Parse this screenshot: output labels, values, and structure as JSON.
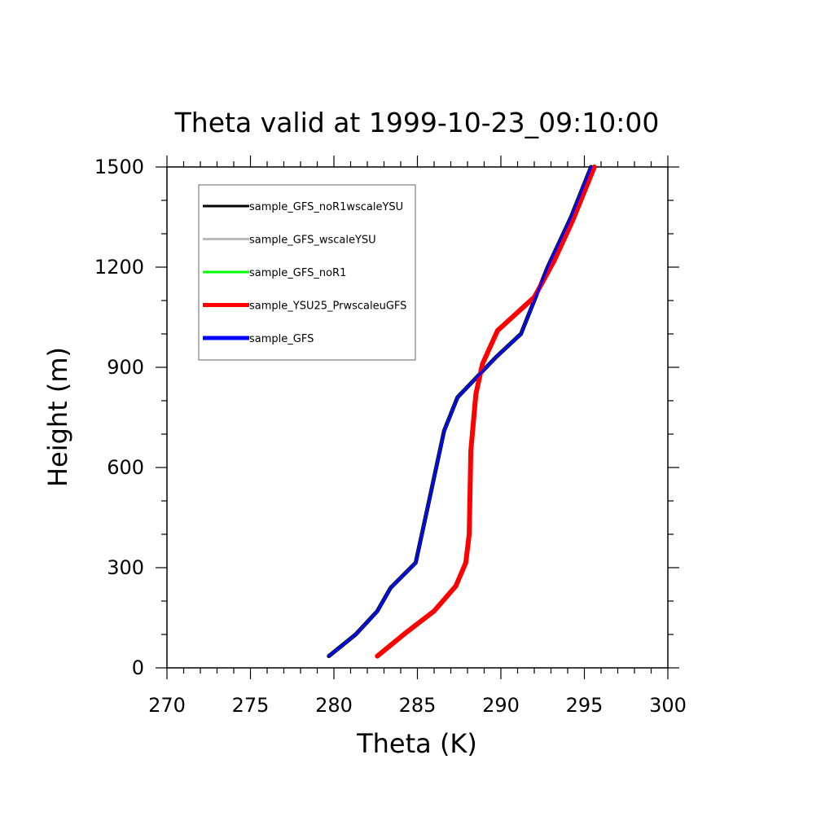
{
  "chart_data": {
    "type": "line",
    "title": "Theta valid at 1999-10-23_09:10:00",
    "xlabel": "Theta (K)",
    "ylabel": "Height (m)",
    "xlim": [
      270,
      300
    ],
    "ylim": [
      0,
      1500
    ],
    "x_ticks": [
      270,
      275,
      280,
      285,
      290,
      295,
      300
    ],
    "y_ticks": [
      0,
      300,
      600,
      900,
      1200,
      1500
    ],
    "grid": false,
    "legend": "top-left",
    "series": [
      {
        "name": "sample_GFS_noR1wscaleYSU",
        "color": "#000000",
        "x": [
          279.7,
          281.3,
          282.6,
          283.4,
          284.9,
          285.7,
          286.6,
          287.4,
          289.7,
          291.2,
          292.8,
          294.2,
          295.4
        ],
        "y": [
          35,
          100,
          170,
          240,
          315,
          500,
          710,
          810,
          930,
          1000,
          1200,
          1350,
          1500
        ]
      },
      {
        "name": "sample_GFS_wscaleYSU",
        "color": "#bbbbbb",
        "x": [
          279.7,
          281.3,
          282.6,
          283.4,
          284.9,
          285.7,
          286.6,
          287.4,
          289.7,
          291.2,
          292.8,
          294.2,
          295.4
        ],
        "y": [
          35,
          100,
          170,
          240,
          315,
          500,
          710,
          810,
          930,
          1000,
          1200,
          1350,
          1500
        ]
      },
      {
        "name": "sample_GFS_noR1",
        "color": "#00ff00",
        "x": [
          279.7,
          281.3,
          282.6,
          283.4,
          284.9,
          285.7,
          286.6,
          287.4,
          289.7,
          291.2,
          292.8,
          294.2,
          295.4
        ],
        "y": [
          35,
          100,
          170,
          240,
          315,
          500,
          710,
          810,
          930,
          1000,
          1200,
          1350,
          1500
        ]
      },
      {
        "name": "sample_YSU25_PrwscaleuGFS",
        "color": "#ff0000",
        "x": [
          282.6,
          284.3,
          286.0,
          287.3,
          287.9,
          288.1,
          288.2,
          288.5,
          288.9,
          289.8,
          292.0,
          293.2,
          294.3,
          295.6
        ],
        "y": [
          35,
          105,
          170,
          245,
          315,
          400,
          650,
          820,
          910,
          1010,
          1110,
          1220,
          1340,
          1500
        ]
      },
      {
        "name": "sample_GFS",
        "color": "#0000ff",
        "x": [
          279.7,
          281.3,
          282.6,
          283.4,
          284.9,
          285.7,
          286.6,
          287.4,
          289.7,
          291.2,
          292.8,
          294.2,
          295.4
        ],
        "y": [
          35,
          100,
          170,
          240,
          315,
          500,
          710,
          810,
          930,
          1000,
          1200,
          1350,
          1500
        ]
      }
    ]
  }
}
